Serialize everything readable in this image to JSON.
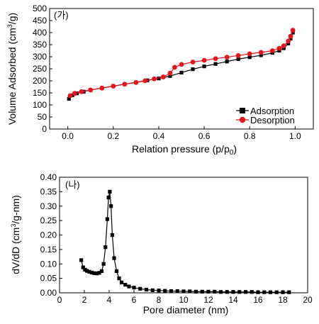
{
  "chart_data": [
    {
      "type": "scatter",
      "panel_label": "(가)",
      "xlabel": "Relation  pressure  (p/p",
      "xlabel_sub": "0",
      "xlabel_end": ")",
      "ylabel_pre": "Volume Adsorbed (cm",
      "ylabel_sup": "3",
      "ylabel_post": "/g)",
      "xlim": [
        -0.08,
        1.08
      ],
      "ylim": [
        0,
        500
      ],
      "xticks": [
        "0.0",
        "0.2",
        "0.4",
        "0.6",
        "0.8",
        "1.0"
      ],
      "yticks": [
        "0",
        "50",
        "100",
        "150",
        "200",
        "250",
        "300",
        "350",
        "400",
        "450",
        "500"
      ],
      "legend_position": "bottom-right",
      "series": [
        {
          "name": "Adsorption",
          "color": "#000000",
          "marker": "square",
          "x": [
            0.005,
            0.02,
            0.04,
            0.07,
            0.1,
            0.15,
            0.2,
            0.25,
            0.3,
            0.35,
            0.4,
            0.45,
            0.5,
            0.55,
            0.6,
            0.65,
            0.7,
            0.75,
            0.8,
            0.85,
            0.9,
            0.93,
            0.95,
            0.97,
            0.98,
            0.99
          ],
          "y": [
            125,
            140,
            148,
            155,
            162,
            170,
            178,
            186,
            194,
            202,
            210,
            220,
            234,
            248,
            260,
            270,
            280,
            290,
            298,
            306,
            316,
            325,
            335,
            355,
            375,
            400
          ]
        },
        {
          "name": "Desorption",
          "color": "#e8141c",
          "marker": "circle",
          "x": [
            0.99,
            0.98,
            0.97,
            0.95,
            0.93,
            0.9,
            0.85,
            0.8,
            0.75,
            0.7,
            0.65,
            0.6,
            0.55,
            0.5,
            0.47,
            0.45,
            0.42,
            0.38,
            0.34,
            0.3,
            0.25,
            0.2,
            0.15,
            0.1,
            0.06,
            0.03,
            0.01
          ],
          "y": [
            410,
            385,
            365,
            345,
            335,
            325,
            318,
            312,
            305,
            298,
            292,
            285,
            278,
            268,
            256,
            232,
            216,
            208,
            200,
            193,
            186,
            178,
            170,
            162,
            155,
            148,
            138
          ]
        }
      ]
    },
    {
      "type": "line",
      "panel_label": "(나)",
      "xlabel": "Pore diameter  (nm)",
      "ylabel_pre": "dV/dD (cm",
      "ylabel_sup": "3",
      "ylabel_post": "/g-nm)",
      "xlim": [
        0,
        20
      ],
      "ylim": [
        0,
        0.4
      ],
      "xticks": [
        "0",
        "2",
        "4",
        "6",
        "8",
        "10",
        "12",
        "14",
        "16",
        "18",
        "20"
      ],
      "yticks": [
        "0.00",
        "0.05",
        "0.10",
        "0.15",
        "0.20",
        "0.25",
        "0.30",
        "0.35",
        "0.40"
      ],
      "series": [
        {
          "name": "",
          "color": "#000000",
          "marker": "square",
          "x": [
            1.75,
            1.9,
            2.05,
            2.2,
            2.4,
            2.6,
            2.8,
            3.0,
            3.2,
            3.4,
            3.55,
            3.7,
            3.85,
            3.95,
            4.05,
            4.15,
            4.25,
            4.4,
            4.6,
            4.8,
            5.0,
            5.3,
            5.6,
            6.0,
            6.5,
            7.0,
            7.5,
            8.0,
            8.5,
            9.0,
            9.5,
            10.0,
            10.5,
            11.0,
            11.5,
            12.0,
            12.5,
            13.0,
            13.5,
            14.0,
            14.5,
            15.0,
            15.5,
            16.0,
            16.5,
            17.0,
            17.5,
            18.0,
            18.5
          ],
          "y": [
            0.113,
            0.088,
            0.08,
            0.076,
            0.073,
            0.07,
            0.068,
            0.067,
            0.069,
            0.075,
            0.1,
            0.158,
            0.255,
            0.33,
            0.35,
            0.3,
            0.2,
            0.12,
            0.075,
            0.05,
            0.036,
            0.028,
            0.022,
            0.018,
            0.014,
            0.011,
            0.009,
            0.008,
            0.007,
            0.006,
            0.006,
            0.005,
            0.005,
            0.004,
            0.004,
            0.004,
            0.004,
            0.003,
            0.003,
            0.003,
            0.003,
            0.003,
            0.003,
            0.002,
            0.002,
            0.002,
            0.002,
            0.002,
            0.002
          ]
        }
      ]
    }
  ]
}
